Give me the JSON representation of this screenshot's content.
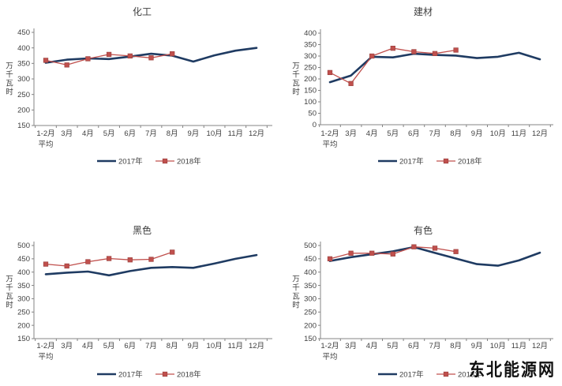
{
  "page": {
    "background": "#ffffff",
    "watermark": "东北能源网"
  },
  "colors": {
    "series_2017": "#1f3b62",
    "series_2018": "#c0504d",
    "marker_border": "#9e4340",
    "axis": "#848484",
    "tick_text": "#3f3f3f",
    "title_text": "#3f3f3f"
  },
  "chart_data": [
    {
      "type": "line",
      "title": "化工",
      "ylabel": "万千瓦时",
      "xlabel": "",
      "categories": [
        "1-2月",
        "3月",
        "4月",
        "5月",
        "6月",
        "7月",
        "8月",
        "9月",
        "10月",
        "11月",
        "12月"
      ],
      "x_first_sub_label": "平均",
      "ylim": [
        150,
        450
      ],
      "yticks": [
        450,
        400,
        350,
        300,
        250,
        200,
        150
      ],
      "grid": false,
      "legend_position": "bottom",
      "series": [
        {
          "name": "2017年",
          "marker": "none",
          "values": [
            352,
            362,
            366,
            364,
            372,
            381,
            375,
            356,
            376,
            391,
            400
          ]
        },
        {
          "name": "2018年",
          "marker": "square",
          "values": [
            360,
            345,
            365,
            379,
            374,
            368,
            381
          ]
        }
      ]
    },
    {
      "type": "line",
      "title": "建材",
      "ylabel": "万千瓦时",
      "xlabel": "",
      "categories": [
        "1-2月",
        "3月",
        "4月",
        "5月",
        "6月",
        "7月",
        "8月",
        "9月",
        "10月",
        "11月",
        "12月"
      ],
      "x_first_sub_label": "平均",
      "ylim": [
        0,
        400
      ],
      "yticks": [
        400,
        350,
        300,
        250,
        200,
        150,
        100,
        50,
        0
      ],
      "grid": false,
      "legend_position": "bottom",
      "series": [
        {
          "name": "2017年",
          "marker": "none",
          "values": [
            186,
            215,
            297,
            294,
            310,
            305,
            302,
            291,
            297,
            314,
            286
          ]
        },
        {
          "name": "2018年",
          "marker": "square",
          "values": [
            228,
            180,
            300,
            334,
            319,
            311,
            326
          ]
        }
      ]
    },
    {
      "type": "line",
      "title": "黑色",
      "ylabel": "万千瓦时",
      "xlabel": "",
      "categories": [
        "1-2月",
        "3月",
        "4月",
        "5月",
        "6月",
        "7月",
        "8月",
        "9月",
        "10月",
        "11月",
        "12月"
      ],
      "x_first_sub_label": "平均",
      "ylim": [
        150,
        500
      ],
      "yticks": [
        500,
        450,
        400,
        350,
        300,
        250,
        200,
        150
      ],
      "grid": false,
      "legend_position": "bottom",
      "series": [
        {
          "name": "2017年",
          "marker": "none",
          "values": [
            392,
            398,
            402,
            388,
            404,
            416,
            419,
            416,
            432,
            450,
            464
          ]
        },
        {
          "name": "2018年",
          "marker": "square",
          "values": [
            430,
            423,
            439,
            451,
            446,
            448,
            475
          ]
        }
      ]
    },
    {
      "type": "line",
      "title": "有色",
      "ylabel": "万千瓦时",
      "xlabel": "",
      "categories": [
        "1-2月",
        "3月",
        "4月",
        "5月",
        "6月",
        "7月",
        "8月",
        "9月",
        "10月",
        "11月",
        "12月"
      ],
      "x_first_sub_label": "平均",
      "ylim": [
        150,
        500
      ],
      "yticks": [
        500,
        450,
        400,
        350,
        300,
        250,
        200,
        150
      ],
      "grid": false,
      "legend_position": "bottom",
      "series": [
        {
          "name": "2017年",
          "marker": "none",
          "values": [
            442,
            456,
            467,
            478,
            494,
            472,
            451,
            430,
            424,
            444,
            473
          ]
        },
        {
          "name": "2018年",
          "marker": "square",
          "values": [
            450,
            471,
            471,
            468,
            495,
            490,
            477
          ]
        }
      ]
    }
  ]
}
